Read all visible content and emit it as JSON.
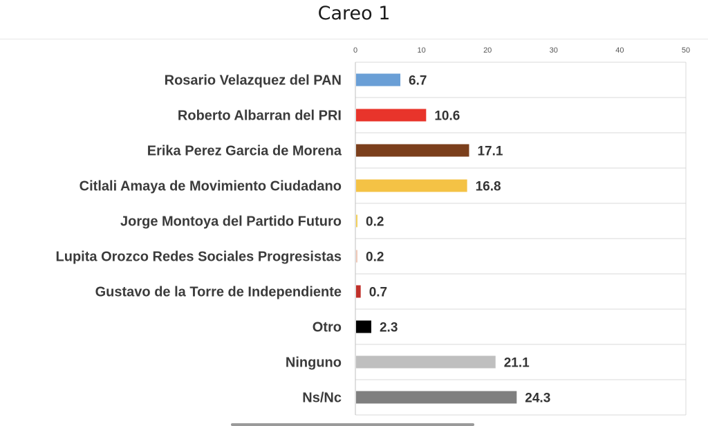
{
  "chart_data": {
    "type": "bar",
    "orientation": "horizontal",
    "title": "Careo 1",
    "categories": [
      "Rosario Velazquez del PAN",
      "Roberto Albarran del PRI",
      "Erika Perez Garcia de Morena",
      "Citlali Amaya de Movimiento Ciudadano",
      "Jorge Montoya del Partido Futuro",
      "Lupita Orozco Redes Sociales Progresistas",
      "Gustavo de la Torre de Independiente",
      "Otro",
      "Ninguno",
      "Ns/Nc"
    ],
    "values": [
      6.7,
      10.6,
      17.1,
      16.8,
      0.2,
      0.2,
      0.7,
      2.3,
      21.1,
      24.3
    ],
    "value_labels": [
      "6.7",
      "10.6",
      "17.1",
      "16.8",
      "0.2",
      "0.2",
      "0.7",
      "2.3",
      "21.1",
      "24.3"
    ],
    "colors": [
      "#6a9fd6",
      "#e8342b",
      "#7b3f1c",
      "#f4c245",
      "#f2d05a",
      "#efc9b8",
      "#c0302a",
      "#000000",
      "#bfbfbf",
      "#7f7f7f"
    ],
    "xlim": [
      0,
      50
    ],
    "xticks": [
      0,
      10,
      20,
      30,
      40,
      50
    ],
    "xtick_labels": [
      "0",
      "10",
      "20",
      "30",
      "40",
      "50"
    ],
    "axis_position": "top",
    "grid": true,
    "xlabel": "",
    "ylabel": ""
  }
}
